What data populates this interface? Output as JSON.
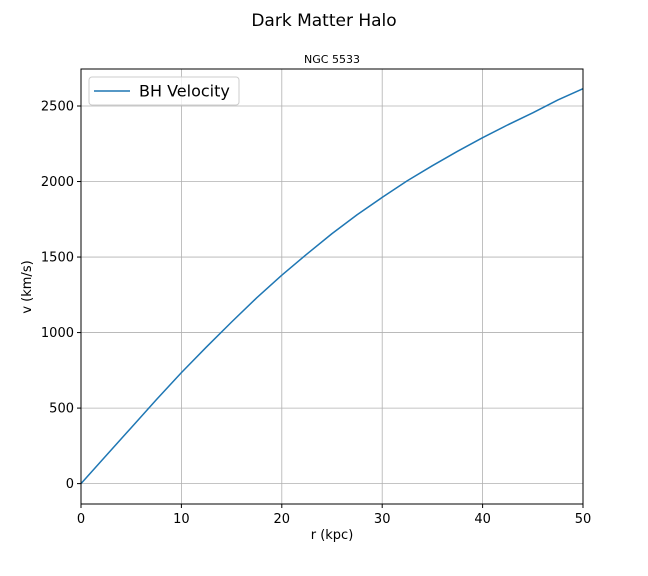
{
  "figure": {
    "suptitle": "Dark Matter Halo"
  },
  "chart_data": {
    "type": "line",
    "title": "NGC 5533",
    "xlabel": "r (kpc)",
    "ylabel": "v (km/s)",
    "xlim": [
      0,
      50
    ],
    "ylim": [
      -135,
      2745
    ],
    "xticks": [
      0,
      10,
      20,
      30,
      40,
      50
    ],
    "yticks": [
      0,
      500,
      1000,
      1500,
      2000,
      2500
    ],
    "grid": true,
    "legend_position": "upper left",
    "series": [
      {
        "name": "BH Velocity",
        "color": "#1f77b4",
        "x": [
          0,
          2.5,
          5,
          7.5,
          10,
          12.5,
          15,
          17.5,
          20,
          22.5,
          25,
          27.5,
          30,
          32.5,
          35,
          37.5,
          40,
          42.5,
          45,
          47.5,
          50
        ],
        "y": [
          0,
          185,
          370,
          555,
          735,
          905,
          1070,
          1230,
          1380,
          1520,
          1655,
          1780,
          1895,
          2005,
          2105,
          2200,
          2290,
          2375,
          2455,
          2540,
          2615
        ]
      }
    ]
  }
}
